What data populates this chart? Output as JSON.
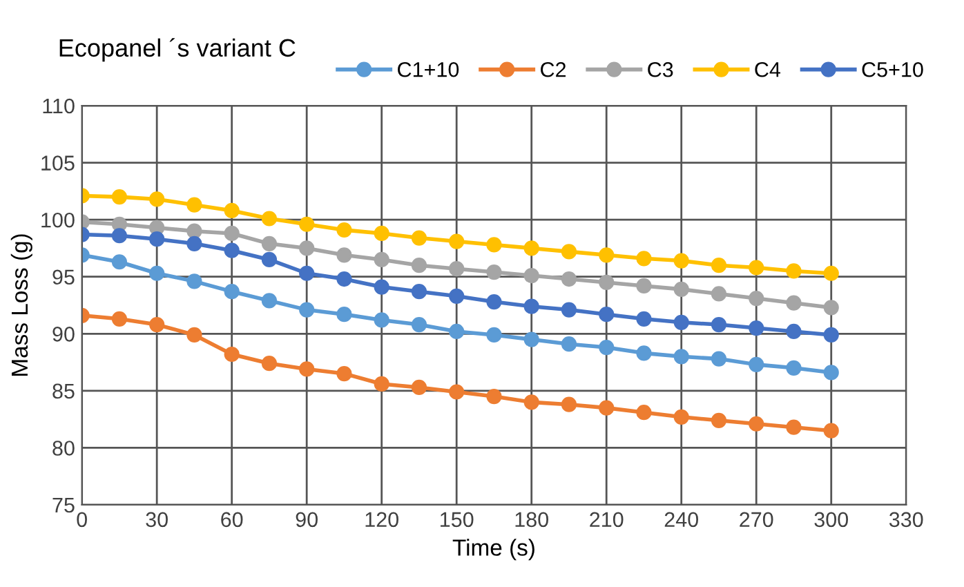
{
  "chart_data": {
    "type": "line",
    "title": "Ecopanel ´s variant C",
    "xlabel": "Time (s)",
    "ylabel": "Mass Loss (g)",
    "x": [
      0,
      15,
      30,
      45,
      60,
      75,
      90,
      105,
      120,
      135,
      150,
      165,
      180,
      195,
      210,
      225,
      240,
      255,
      270,
      285,
      300
    ],
    "series": [
      {
        "name": "C1+10",
        "color": "#5b9bd5",
        "values": [
          96.9,
          96.3,
          95.3,
          94.6,
          93.7,
          92.9,
          92.1,
          91.7,
          91.2,
          90.8,
          90.2,
          89.9,
          89.5,
          89.1,
          88.8,
          88.3,
          88.0,
          87.8,
          87.3,
          87.0,
          86.6
        ]
      },
      {
        "name": "C2",
        "color": "#ed7d31",
        "values": [
          91.6,
          91.3,
          90.8,
          89.9,
          88.2,
          87.4,
          86.9,
          86.5,
          85.6,
          85.3,
          84.9,
          84.5,
          84.0,
          83.8,
          83.5,
          83.1,
          82.7,
          82.4,
          82.1,
          81.8,
          81.5
        ]
      },
      {
        "name": "C3",
        "color": "#a5a5a5",
        "values": [
          99.8,
          99.6,
          99.3,
          99.0,
          98.8,
          97.9,
          97.5,
          96.9,
          96.5,
          96.0,
          95.7,
          95.4,
          95.1,
          94.8,
          94.5,
          94.2,
          93.9,
          93.5,
          93.1,
          92.7,
          92.3
        ]
      },
      {
        "name": "C4",
        "color": "#ffc000",
        "values": [
          102.1,
          102.0,
          101.8,
          101.3,
          100.8,
          100.1,
          99.6,
          99.1,
          98.8,
          98.4,
          98.1,
          97.8,
          97.5,
          97.2,
          96.9,
          96.6,
          96.4,
          96.0,
          95.8,
          95.5,
          95.3
        ]
      },
      {
        "name": "C5+10",
        "color": "#4472c4",
        "values": [
          98.7,
          98.6,
          98.3,
          97.9,
          97.3,
          96.5,
          95.3,
          94.8,
          94.1,
          93.7,
          93.3,
          92.8,
          92.4,
          92.1,
          91.7,
          91.3,
          91.0,
          90.8,
          90.5,
          90.2,
          89.9
        ]
      }
    ],
    "xlim": [
      0,
      330
    ],
    "xticks": [
      0,
      30,
      60,
      90,
      120,
      150,
      180,
      210,
      240,
      270,
      300,
      330
    ],
    "ylim": [
      75,
      110
    ],
    "yticks": [
      75,
      80,
      85,
      90,
      95,
      100,
      105,
      110
    ],
    "grid": true,
    "legend": "top",
    "marker": "circle",
    "line_style": "solid"
  }
}
